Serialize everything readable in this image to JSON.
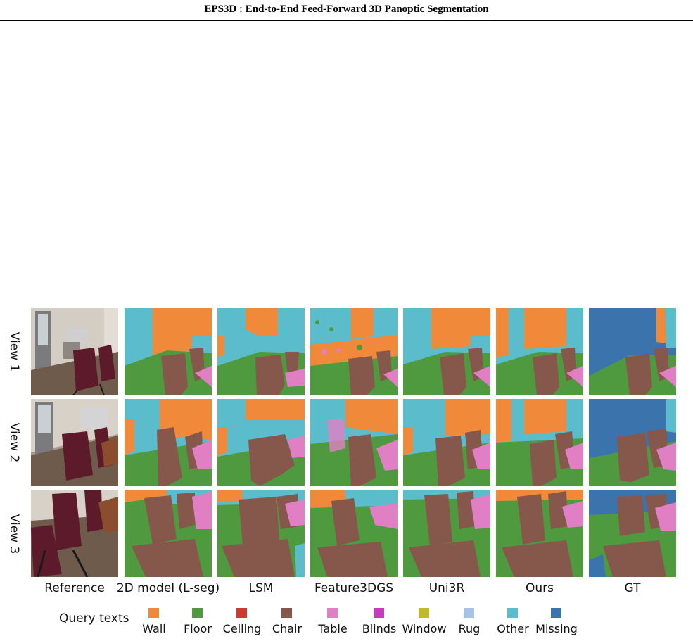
{
  "header": {
    "title": "EPS3D : End-to-End Feed-Forward 3D Panoptic Segmentation"
  },
  "figure": {
    "row_labels": [
      "View 1",
      "View 2",
      "View 3"
    ],
    "columns": [
      "Reference",
      "2D model (L-seg)",
      "LSM",
      "Feature3DGS",
      "Uni3R",
      "Ours",
      "GT"
    ],
    "legend_title": "Query texts",
    "legend": [
      {
        "label": "Wall",
        "color": "#f0893a"
      },
      {
        "label": "Floor",
        "color": "#4f9a3f"
      },
      {
        "label": "Ceiling",
        "color": "#cc3b32"
      },
      {
        "label": "Chair",
        "color": "#86584c"
      },
      {
        "label": "Table",
        "color": "#e07fc4"
      },
      {
        "label": "Blinds",
        "color": "#c43bbb"
      },
      {
        "label": "Window",
        "color": "#bdbb2b"
      },
      {
        "label": "Rug",
        "color": "#a9c3e6"
      },
      {
        "label": "Other",
        "color": "#5bbccb"
      },
      {
        "label": "Missing",
        "color": "#3b74ad"
      }
    ]
  }
}
